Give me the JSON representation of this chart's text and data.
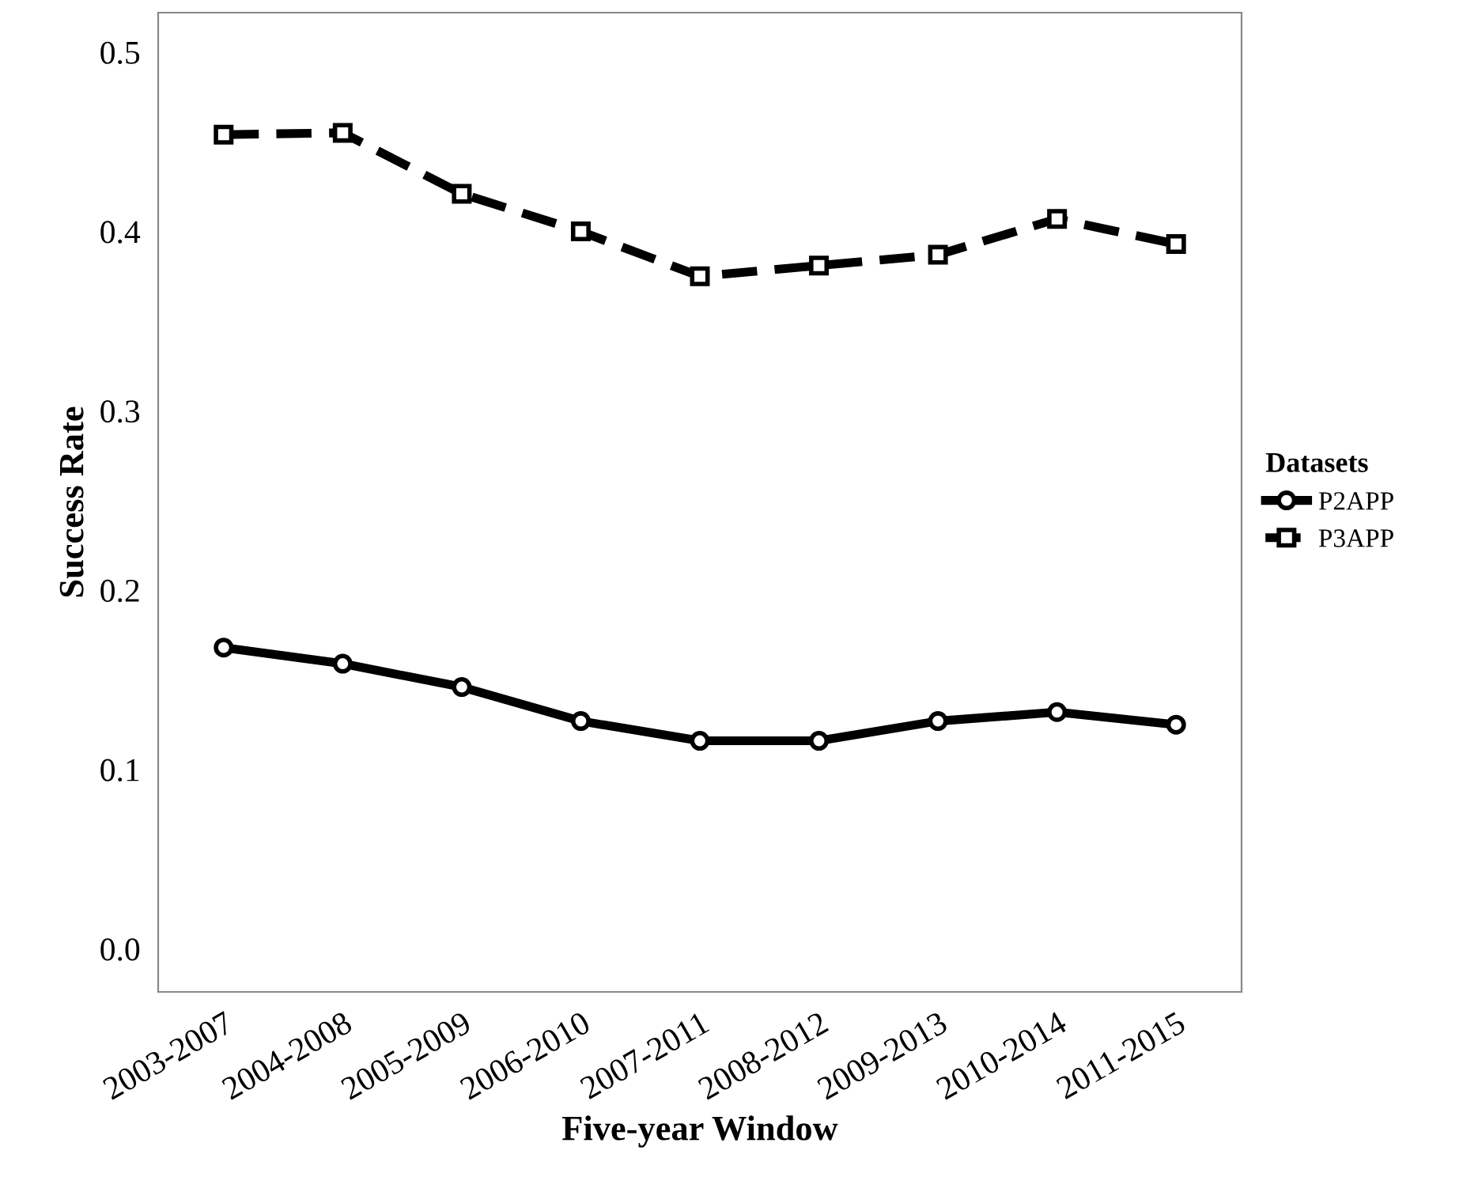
{
  "chart_data": {
    "type": "line",
    "xlabel": "Five-year Window",
    "ylabel": "Success Rate",
    "legend_title": "Datasets",
    "categories": [
      "2003-2007",
      "2004-2008",
      "2005-2009",
      "2006-2010",
      "2007-2011",
      "2008-2012",
      "2009-2013",
      "2010-2014",
      "2011-2015"
    ],
    "series": [
      {
        "name": "P2APP",
        "color": "#000000",
        "marker": "circle",
        "line_style": "solid",
        "values": [
          0.168,
          0.159,
          0.146,
          0.127,
          0.116,
          0.116,
          0.127,
          0.132,
          0.125
        ]
      },
      {
        "name": "P3APP",
        "color": "#000000",
        "marker": "square",
        "line_style": "dashed",
        "values": [
          0.454,
          0.455,
          0.421,
          0.4,
          0.375,
          0.381,
          0.387,
          0.407,
          0.393
        ]
      }
    ],
    "ylim": [
      -0.024,
      0.522
    ],
    "yticks": [
      {
        "value": 0,
        "label": "0.0"
      },
      0.1,
      0.2,
      0.3,
      0.4,
      0.5
    ],
    "grid": false,
    "legend": "right"
  }
}
